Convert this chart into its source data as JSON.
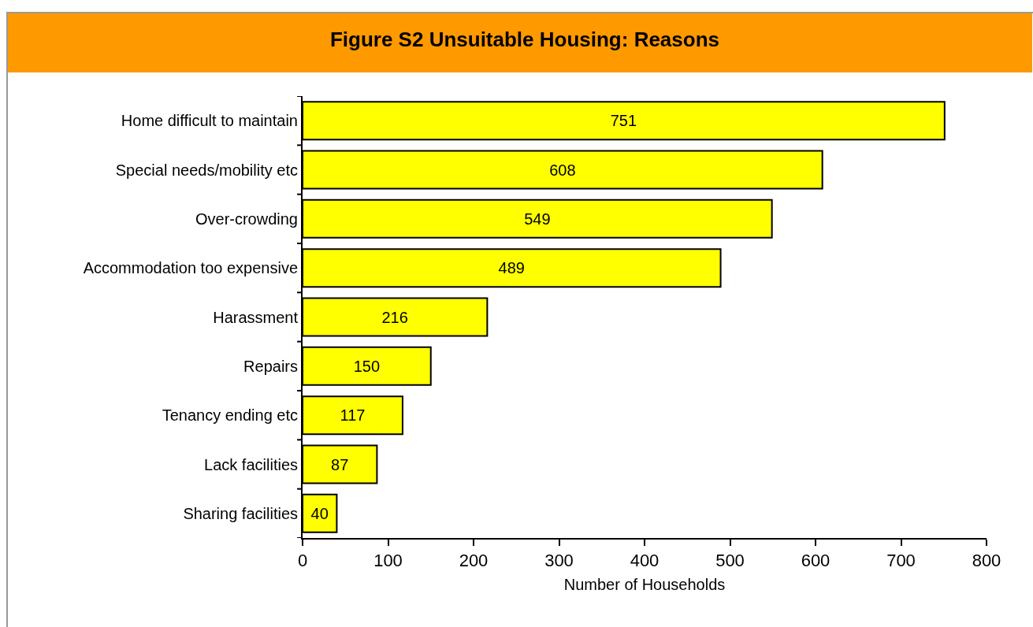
{
  "chart_data": {
    "type": "bar",
    "orientation": "horizontal",
    "title": "Figure S2 Unsuitable Housing: Reasons",
    "xlabel": "Number of Households",
    "categories": [
      "Home difficult to maintain",
      "Special needs/mobility etc",
      "Over-crowding",
      "Accommodation too expensive",
      "Harassment",
      "Repairs",
      "Tenancy ending etc",
      "Lack facilities",
      "Sharing facilities"
    ],
    "values": [
      751,
      608,
      549,
      489,
      216,
      150,
      117,
      87,
      40
    ],
    "color": "#ffff00",
    "xlim": [
      0,
      800
    ],
    "xticks": [
      0,
      100,
      200,
      300,
      400,
      500,
      600,
      700,
      800
    ],
    "data_labels": true
  }
}
